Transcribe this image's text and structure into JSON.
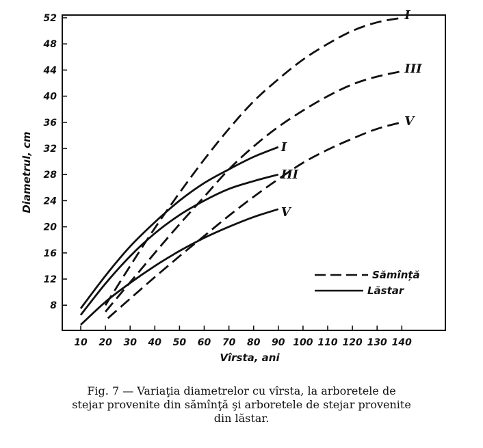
{
  "chart_data": {
    "type": "line",
    "xlabel": "Vîrsta, ani",
    "ylabel": "Diametrul, cm",
    "xlim": [
      5,
      150
    ],
    "ylim": [
      4,
      52
    ],
    "x_ticks": [
      10,
      20,
      30,
      40,
      50,
      60,
      70,
      80,
      90,
      100,
      110,
      120,
      130,
      140
    ],
    "y_ticks": [
      8,
      12,
      16,
      20,
      24,
      28,
      32,
      36,
      40,
      44,
      48,
      52
    ],
    "legend": {
      "position": "lower-right",
      "entries": [
        {
          "label": "Sămînță",
          "style": "dashed"
        },
        {
          "label": "Lăstar",
          "style": "solid"
        }
      ]
    },
    "series": [
      {
        "name": "I",
        "group": "Sămînță",
        "style": "dashed",
        "x": [
          20,
          30,
          40,
          50,
          60,
          70,
          80,
          90,
          100,
          110,
          120,
          130,
          140
        ],
        "y": [
          8.0,
          14.0,
          19.8,
          25.2,
          30.3,
          35.0,
          39.2,
          42.6,
          45.6,
          48.0,
          50.0,
          51.3,
          52.0
        ]
      },
      {
        "name": "III",
        "group": "Sămînță",
        "style": "dashed",
        "x": [
          20,
          30,
          40,
          50,
          60,
          70,
          80,
          90,
          100,
          110,
          120,
          130,
          140
        ],
        "y": [
          7.0,
          11.5,
          16.0,
          20.4,
          24.6,
          28.8,
          32.3,
          35.3,
          37.8,
          40.0,
          41.8,
          43.0,
          43.8
        ]
      },
      {
        "name": "V",
        "group": "Sămînță",
        "style": "dashed",
        "x": [
          21,
          30,
          40,
          50,
          60,
          70,
          80,
          90,
          100,
          110,
          120,
          130,
          140
        ],
        "y": [
          6.0,
          9.0,
          12.3,
          15.5,
          18.6,
          21.7,
          24.6,
          27.3,
          29.8,
          31.8,
          33.5,
          35.0,
          36.0
        ]
      },
      {
        "name": "I",
        "group": "Lăstar",
        "style": "solid",
        "x": [
          10,
          20,
          30,
          40,
          50,
          60,
          70,
          80,
          90
        ],
        "y": [
          7.5,
          12.5,
          17.0,
          20.7,
          24.0,
          26.7,
          28.8,
          30.7,
          32.2
        ]
      },
      {
        "name": "III",
        "group": "Lăstar",
        "style": "solid",
        "x": [
          10,
          20,
          30,
          40,
          50,
          60,
          70,
          80,
          90
        ],
        "y": [
          6.5,
          11.3,
          15.5,
          19.0,
          21.8,
          24.0,
          25.8,
          27.0,
          28.0
        ]
      },
      {
        "name": "V",
        "group": "Lăstar",
        "style": "solid",
        "x": [
          10,
          20,
          30,
          40,
          50,
          60,
          70,
          80,
          90
        ],
        "y": [
          5.0,
          8.5,
          11.4,
          14.0,
          16.3,
          18.3,
          20.0,
          21.5,
          22.7
        ]
      }
    ]
  },
  "caption": {
    "line1": "Fig. 7 — Variaţia  diametrelor cu vîrsta, la arboretele  de",
    "line2": "stejar provenite din sămînţă şi arboretele de stejar provenite",
    "line3": "din lăstar."
  }
}
